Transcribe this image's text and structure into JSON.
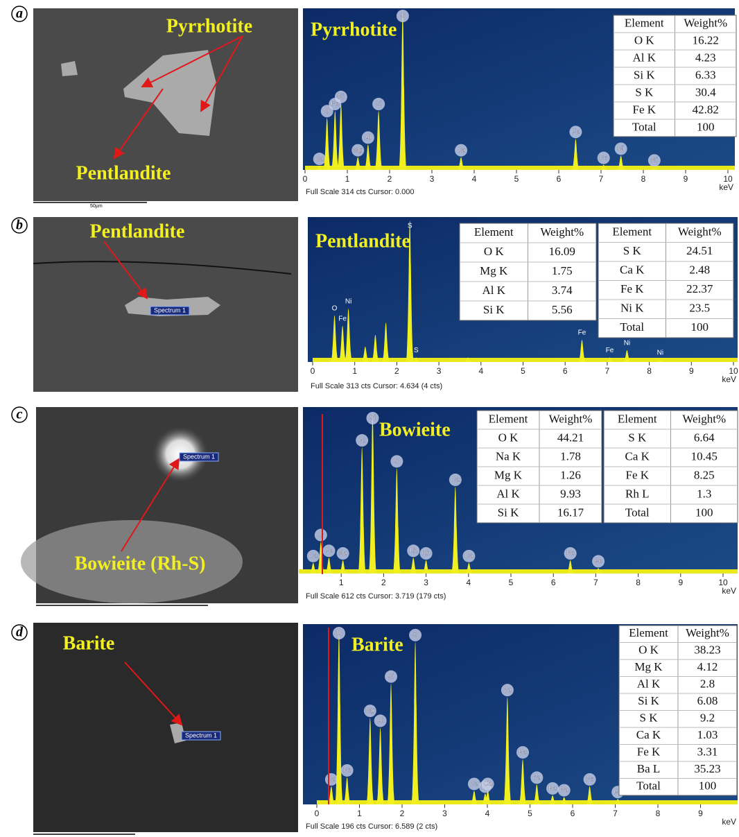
{
  "panels": [
    {
      "letter": "a",
      "image": {
        "labels": [
          "Pyrrhotite",
          "Pentlandite"
        ],
        "scale_bar": "50µm"
      },
      "spectrum": {
        "title": "Pyrrhotite",
        "x_unit": "keV",
        "xlim": [
          0,
          10
        ],
        "xticks": [
          0,
          1,
          2,
          3,
          4,
          5,
          6,
          7,
          8,
          9,
          10
        ],
        "ylim": [
          0,
          314
        ],
        "footer": "Full Scale 314 cts Cursor: 0.000",
        "peaks": {
          "labels": [
            "Ca",
            "O",
            "Fe",
            "Ni",
            "Mg",
            "Al",
            "Si",
            "S",
            "Ca",
            "Fe",
            "Fe",
            "Ni",
            "Ni"
          ],
          "x": [
            0.34,
            0.52,
            0.71,
            0.85,
            1.25,
            1.49,
            1.74,
            2.31,
            3.69,
            6.4,
            7.06,
            7.47,
            8.26
          ],
          "heights": [
            8,
            102,
            116,
            130,
            25,
            50,
            116,
            314,
            25,
            61,
            10,
            28,
            5
          ]
        }
      },
      "tables": [
        {
          "columns": [
            "Element",
            "Weight%"
          ],
          "rows": [
            [
              "O K",
              16.22
            ],
            [
              "Al K",
              4.23
            ],
            [
              "Si K",
              6.33
            ],
            [
              "S K",
              30.4
            ],
            [
              "Fe K",
              42.82
            ],
            [
              "Total",
              100
            ]
          ]
        }
      ]
    },
    {
      "letter": "b",
      "image": {
        "labels": [
          "Pentlandite",
          "Spectrum 1"
        ]
      },
      "spectrum": {
        "title": "Pentlandite",
        "x_unit": "keV",
        "xlim": [
          0,
          10
        ],
        "xticks": [
          0,
          1,
          2,
          3,
          4,
          5,
          6,
          7,
          8,
          9,
          10
        ],
        "ylim": [
          0,
          313
        ],
        "footer": "Full Scale 313 cts Cursor: 4.634 (4 cts)",
        "peaks": {
          "labels": [
            "O",
            "Fe",
            "Ni",
            null,
            null,
            null,
            "S",
            "S",
            null,
            "Fe",
            "Fe",
            "Ni",
            "Ni"
          ],
          "x": [
            0.52,
            0.71,
            0.85,
            1.25,
            1.49,
            1.74,
            2.31,
            2.46,
            3.69,
            6.4,
            7.06,
            7.47,
            8.26
          ],
          "heights": [
            103,
            80,
            118,
            34,
            60,
            87,
            313,
            10,
            10,
            49,
            10,
            26,
            5
          ]
        }
      },
      "tables": [
        {
          "columns": [
            "Element",
            "Weight%"
          ],
          "rows": [
            [
              "O K",
              16.09
            ],
            [
              "Mg K",
              1.75
            ],
            [
              "Al K",
              3.74
            ],
            [
              "Si K",
              5.56
            ]
          ]
        },
        {
          "columns": [
            "Element",
            "Weight%"
          ],
          "rows": [
            [
              "S K",
              24.51
            ],
            [
              "Ca K",
              2.48
            ],
            [
              "Fe K",
              22.37
            ],
            [
              "Ni K",
              23.5
            ],
            [
              "Total",
              100
            ]
          ]
        }
      ]
    },
    {
      "letter": "c",
      "image": {
        "labels": [
          "Bowieite (Rh-S)",
          "Spectrum 1"
        ]
      },
      "spectrum": {
        "title": "Bowieite",
        "x_unit": "keV",
        "xlim": [
          0,
          10
        ],
        "xticks": [
          1,
          2,
          3,
          4,
          5,
          6,
          7,
          8,
          9,
          10
        ],
        "ylim": [
          0,
          612
        ],
        "footer": "Full Scale 612 cts Cursor: 3.719 (179 cts)",
        "peaks": {
          "labels": [
            "Ca",
            "O",
            "Fe",
            "Na",
            "Al",
            "Si",
            "S",
            "Rh",
            "Rh",
            "Ca",
            "Ca",
            "Fe",
            "Fe"
          ],
          "x": [
            0.34,
            0.52,
            0.71,
            1.04,
            1.49,
            1.74,
            2.31,
            2.7,
            3.0,
            3.69,
            4.01,
            6.4,
            7.06
          ],
          "heights": [
            40,
            120,
            60,
            50,
            480,
            612,
            400,
            60,
            50,
            330,
            40,
            50,
            20
          ]
        }
      },
      "tables": [
        {
          "columns": [
            "Element",
            "Weight%"
          ],
          "rows": [
            [
              "O K",
              44.21
            ],
            [
              "Na K",
              1.78
            ],
            [
              "Mg K",
              1.26
            ],
            [
              "Al K",
              9.93
            ],
            [
              "Si K",
              16.17
            ]
          ]
        },
        {
          "columns": [
            "Element",
            "Weight%"
          ],
          "rows": [
            [
              "S K",
              6.64
            ],
            [
              "Ca K",
              10.45
            ],
            [
              "Fe K",
              8.25
            ],
            [
              "Rh L",
              1.3
            ],
            [
              "Total",
              100
            ]
          ]
        }
      ]
    },
    {
      "letter": "d",
      "image": {
        "labels": [
          "Barite",
          "Spectrum 1"
        ]
      },
      "spectrum": {
        "title": "Barite",
        "x_unit": "keV",
        "xlim": [
          0,
          10
        ],
        "xticks": [
          0,
          1,
          2,
          3,
          4,
          5,
          6,
          7,
          8,
          9
        ],
        "ylim": [
          0,
          196
        ],
        "footer": "Full Scale 196 cts Cursor: 6.589 (2 cts)",
        "peaks": {
          "labels": [
            "Ca",
            "O",
            "Fe",
            "Mg",
            "Al",
            "Si",
            "S",
            "Ca",
            "Ba",
            "Ca",
            "Ba",
            "Ba",
            "Ba",
            "Ba",
            "Ba",
            "Fe",
            "Fe"
          ],
          "x": [
            0.34,
            0.52,
            0.71,
            1.25,
            1.49,
            1.74,
            2.31,
            3.69,
            3.95,
            4.01,
            4.47,
            4.83,
            5.16,
            5.53,
            5.8,
            6.4,
            7.06
          ],
          "heights": [
            20,
            192,
            30,
            96,
            85,
            134,
            180,
            15,
            12,
            15,
            119,
            50,
            22,
            10,
            8,
            20,
            6
          ]
        }
      },
      "tables": [
        {
          "columns": [
            "Element",
            "Weight%"
          ],
          "rows": [
            [
              "O K",
              38.23
            ],
            [
              "Mg K",
              4.12
            ],
            [
              "Al K",
              2.8
            ],
            [
              "Si K",
              6.08
            ],
            [
              "S K",
              9.2
            ],
            [
              "Ca K",
              1.03
            ],
            [
              "Fe K",
              3.31
            ],
            [
              "Ba L",
              35.23
            ],
            [
              "Total",
              100
            ]
          ]
        }
      ]
    }
  ]
}
